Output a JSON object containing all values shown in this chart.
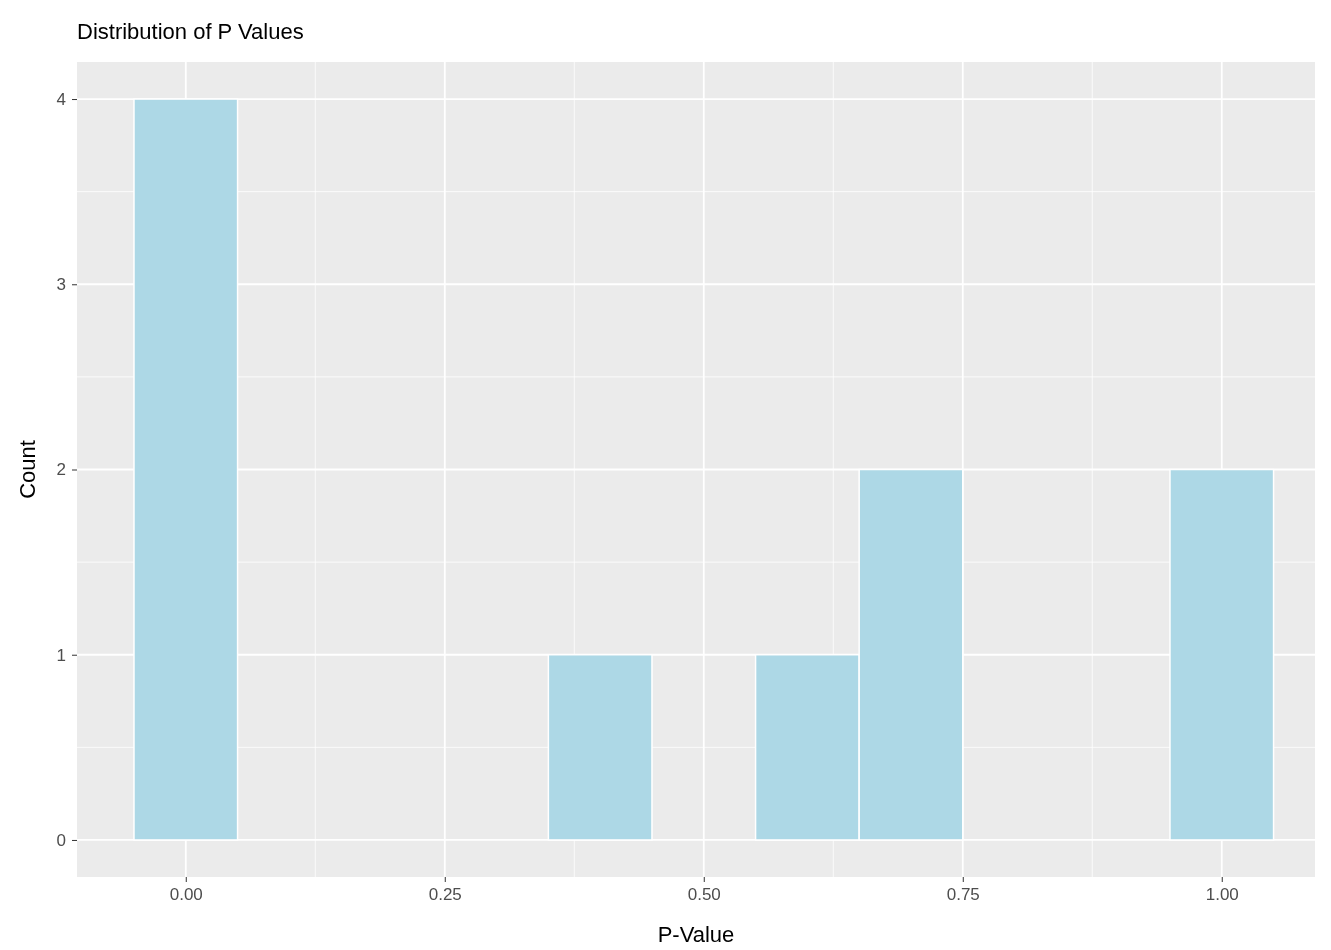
{
  "chart_data": {
    "type": "histogram",
    "title": "Distribution of P Values",
    "xlabel": "P-Value",
    "ylabel": "Count",
    "bins": [
      -0.05,
      0.05,
      0.15,
      0.25,
      0.35,
      0.45,
      0.55,
      0.65,
      0.75,
      0.85,
      0.95,
      1.05
    ],
    "values": [
      4,
      0,
      0,
      0,
      1,
      0,
      1,
      2,
      0,
      0,
      2
    ],
    "color": "#add8e6",
    "xlim": [
      -0.105,
      1.09
    ],
    "xticks": [
      {
        "value": 0,
        "label": "0.00"
      },
      {
        "value": 0.25,
        "label": "0.25"
      },
      {
        "value": 0.5,
        "label": "0.50"
      },
      {
        "value": 0.75,
        "label": "0.75"
      },
      {
        "value": 1,
        "label": "1.00"
      }
    ],
    "ylim": [
      -0.2,
      4.2
    ],
    "yticks": [
      0,
      1,
      2,
      3,
      4
    ],
    "grid": true
  }
}
